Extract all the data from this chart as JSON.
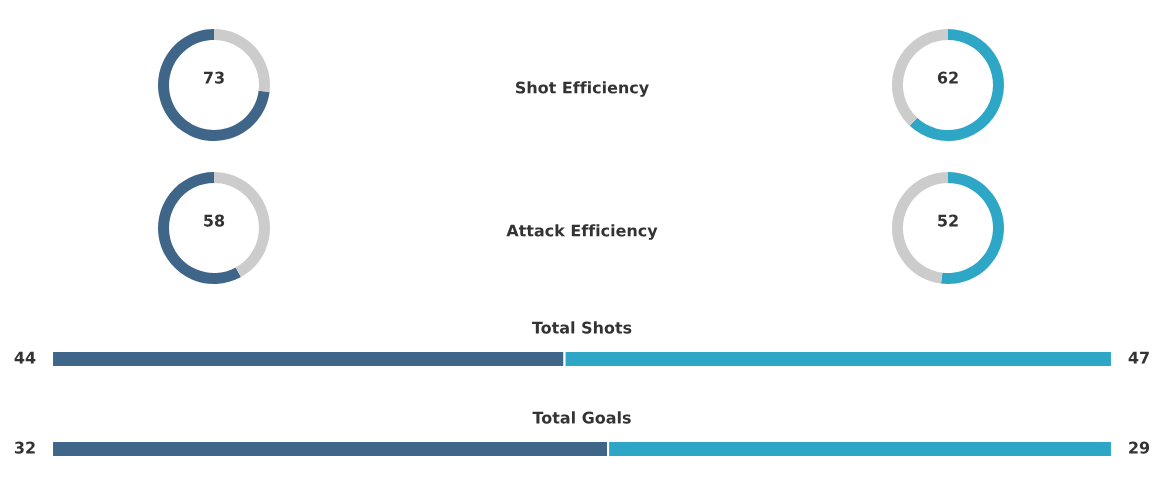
{
  "chart_data": [
    {
      "type": "donut",
      "title": "Shot Efficiency",
      "categories": [
        null,
        null
      ],
      "series": [
        {
          "values": [
            73,
            27
          ],
          "colors": [
            "#3f6589",
            "#cccccc"
          ],
          "value_labels": [
            "73",
            null
          ]
        },
        {
          "values": [
            62,
            38
          ],
          "colors": [
            "#2ea6c6",
            "#cccccc"
          ],
          "value_labels": [
            "62",
            null
          ]
        }
      ]
    },
    {
      "type": "donut",
      "title": "Attack Efficiency",
      "categories": [
        null,
        null
      ],
      "series": [
        {
          "values": [
            58,
            42
          ],
          "colors": [
            "#3f6589",
            "#cccccc"
          ],
          "value_labels": [
            "58",
            null
          ]
        },
        {
          "values": [
            52,
            48
          ],
          "colors": [
            "#2ea6c6",
            "#cccccc"
          ],
          "value_labels": [
            "52",
            null
          ]
        }
      ]
    },
    {
      "type": "bar",
      "title": "Total Shots",
      "orientation": "horizontal",
      "stacked": true,
      "categories": [
        null
      ],
      "data_labels": true,
      "series": [
        {
          "color": "#3f6589",
          "values": [
            44
          ]
        },
        {
          "color": "#2ea6c6",
          "values": [
            47
          ]
        }
      ]
    },
    {
      "type": "bar",
      "title": "Total Goals",
      "orientation": "horizontal",
      "stacked": true,
      "categories": [
        null
      ],
      "data_labels": true,
      "series": [
        {
          "color": "#3f6589",
          "values": [
            32
          ]
        },
        {
          "color": "#2ea6c6",
          "values": [
            29
          ]
        }
      ]
    }
  ]
}
